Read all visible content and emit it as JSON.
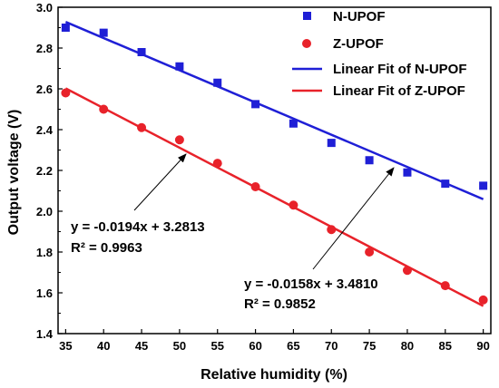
{
  "chart_data": {
    "type": "scatter",
    "xlabel": "Relative humidity (%)",
    "ylabel": "Output voltage (V)",
    "xlim": [
      34,
      91
    ],
    "ylim": [
      1.4,
      3.0
    ],
    "x_ticks": [
      "35",
      "40",
      "45",
      "50",
      "55",
      "60",
      "65",
      "70",
      "75",
      "80",
      "85",
      "90"
    ],
    "y_ticks": [
      "1.4",
      "1.6",
      "1.8",
      "2.0",
      "2.2",
      "2.4",
      "2.6",
      "2.8",
      "3.0"
    ],
    "legend_position": "top-right",
    "series": [
      {
        "name": "N-UPOF",
        "marker": "square",
        "color": "#1f1fd6",
        "x": [
          35,
          40,
          45,
          50,
          55,
          60,
          65,
          70,
          75,
          80,
          85,
          90
        ],
        "y": [
          2.9,
          2.875,
          2.78,
          2.71,
          2.63,
          2.525,
          2.43,
          2.335,
          2.25,
          2.19,
          2.135,
          2.125
        ]
      },
      {
        "name": "Z-UPOF",
        "marker": "circle",
        "color": "#e8222a",
        "x": [
          35,
          40,
          45,
          50,
          55,
          60,
          65,
          70,
          75,
          80,
          85,
          90
        ],
        "y": [
          2.58,
          2.5,
          2.41,
          2.35,
          2.235,
          2.12,
          2.03,
          1.91,
          1.8,
          1.71,
          1.635,
          1.565
        ]
      }
    ],
    "fits": [
      {
        "name": "Linear Fit of N-UPOF",
        "color": "#1f1fd6",
        "slope": -0.0158,
        "intercept": 3.481,
        "equation": "y = -0.0158x + 3.4810",
        "r2": "R² = 0.9852"
      },
      {
        "name": "Linear Fit of Z-UPOF",
        "color": "#e8222a",
        "slope": -0.0194,
        "intercept": 3.2813,
        "equation": "y = -0.0194x + 3.2813",
        "r2": "R² = 0.9963"
      }
    ]
  }
}
